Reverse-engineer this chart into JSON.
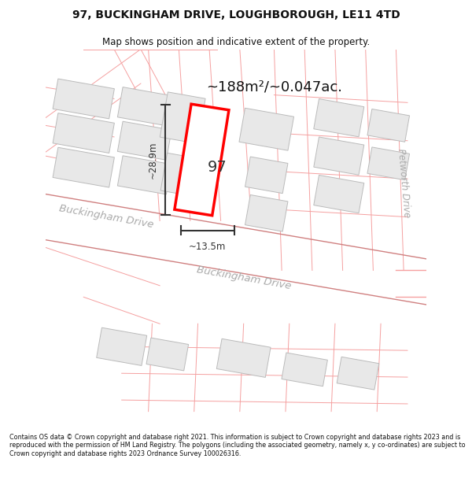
{
  "title_line1": "97, BUCKINGHAM DRIVE, LOUGHBOROUGH, LE11 4TD",
  "title_line2": "Map shows position and indicative extent of the property.",
  "area_text": "~188m²/~0.047ac.",
  "width_label": "~13.5m",
  "height_label": "~28.9m",
  "number_label": "97",
  "street_label_top_left": "Buckingham Drive",
  "street_label_bottom": "Buckingham Drive",
  "street_label_right": "Petworth Drive",
  "footer_text": "Contains OS data © Crown copyright and database right 2021. This information is subject to Crown copyright and database rights 2023 and is reproduced with the permission of HM Land Registry. The polygons (including the associated geometry, namely x, y co-ordinates) are subject to Crown copyright and database rights 2023 Ordnance Survey 100026316.",
  "bg_color": "#ffffff",
  "building_fill": "#e8e8e8",
  "building_edge": "#bbbbbb",
  "parcel_line_color": "#f5a0a0",
  "road_line_color": "#d08080",
  "highlight_fill": "#ffffff",
  "highlight_edge": "#ff0000",
  "dim_color": "#333333",
  "street_color": "#aaaaaa",
  "area_color": "#111111",
  "title_color": "#111111"
}
